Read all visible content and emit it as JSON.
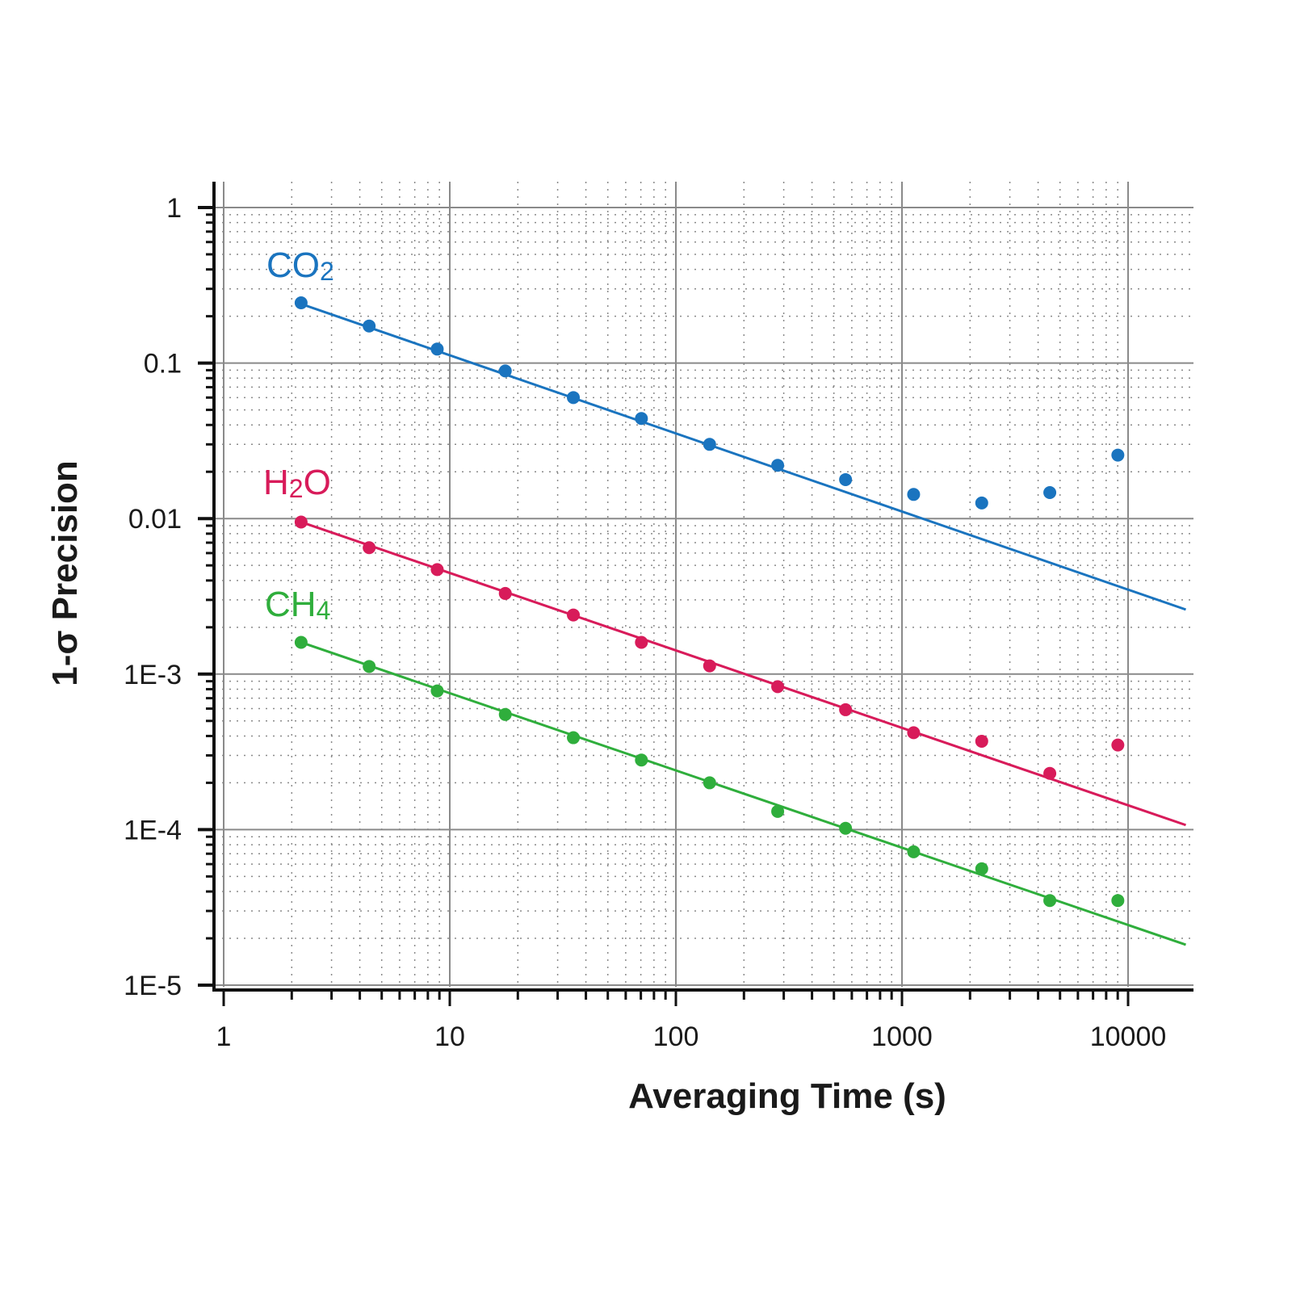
{
  "chart_data": {
    "type": "scatter",
    "title": "",
    "xlabel": "Averaging Time (s)",
    "ylabel": "1-σ Precision",
    "xscale": "log",
    "yscale": "log",
    "xlim": [
      1,
      20000
    ],
    "ylim": [
      1e-05,
      1.2
    ],
    "grid": true,
    "x_tick_labels": [
      "1",
      "10",
      "100",
      "1000",
      "10000"
    ],
    "x_tick_values": [
      1,
      10,
      100,
      1000,
      10000
    ],
    "y_tick_labels": [
      "1",
      "0.1",
      "0.01",
      "1E-3",
      "1E-4",
      "1E-5"
    ],
    "y_tick_values": [
      1,
      0.1,
      0.01,
      0.001,
      0.0001,
      1e-05
    ],
    "x": [
      2.2,
      4.4,
      8.8,
      17.6,
      35.2,
      70.4,
      141,
      282,
      563,
      1126,
      2253,
      4506,
      9011
    ],
    "series": [
      {
        "name": "CO2",
        "label_main": "CO",
        "label_sub": "2",
        "color": "#1a74bf",
        "values": [
          0.244,
          0.173,
          0.123,
          0.089,
          0.06,
          0.044,
          0.03,
          0.022,
          0.0178,
          0.0143,
          0.0126,
          0.0147,
          0.0256
        ],
        "fit": {
          "x": [
            2.2,
            18000
          ],
          "y": [
            0.24,
            0.0026
          ]
        }
      },
      {
        "name": "H2O",
        "label_main": "H",
        "label_sub": "2",
        "label_tail": "O",
        "color": "#d81b5a",
        "values": [
          0.0095,
          0.0065,
          0.0047,
          0.0033,
          0.0024,
          0.0016,
          0.00113,
          0.00083,
          0.00059,
          0.00042,
          0.00037,
          0.00023,
          0.00035
        ],
        "fit": {
          "x": [
            2.2,
            18000
          ],
          "y": [
            0.0095,
            0.000107
          ]
        }
      },
      {
        "name": "CH4",
        "label_main": "CH",
        "label_sub": "4",
        "color": "#2fae3c",
        "values": [
          0.0016,
          0.00112,
          0.00078,
          0.00055,
          0.00039,
          0.00028,
          0.0002,
          0.000131,
          0.000102,
          7.2e-05,
          5.6e-05,
          3.5e-05,
          3.5e-05
        ],
        "fit": {
          "x": [
            2.2,
            18000
          ],
          "y": [
            0.0016,
            1.82e-05
          ]
        }
      }
    ]
  }
}
